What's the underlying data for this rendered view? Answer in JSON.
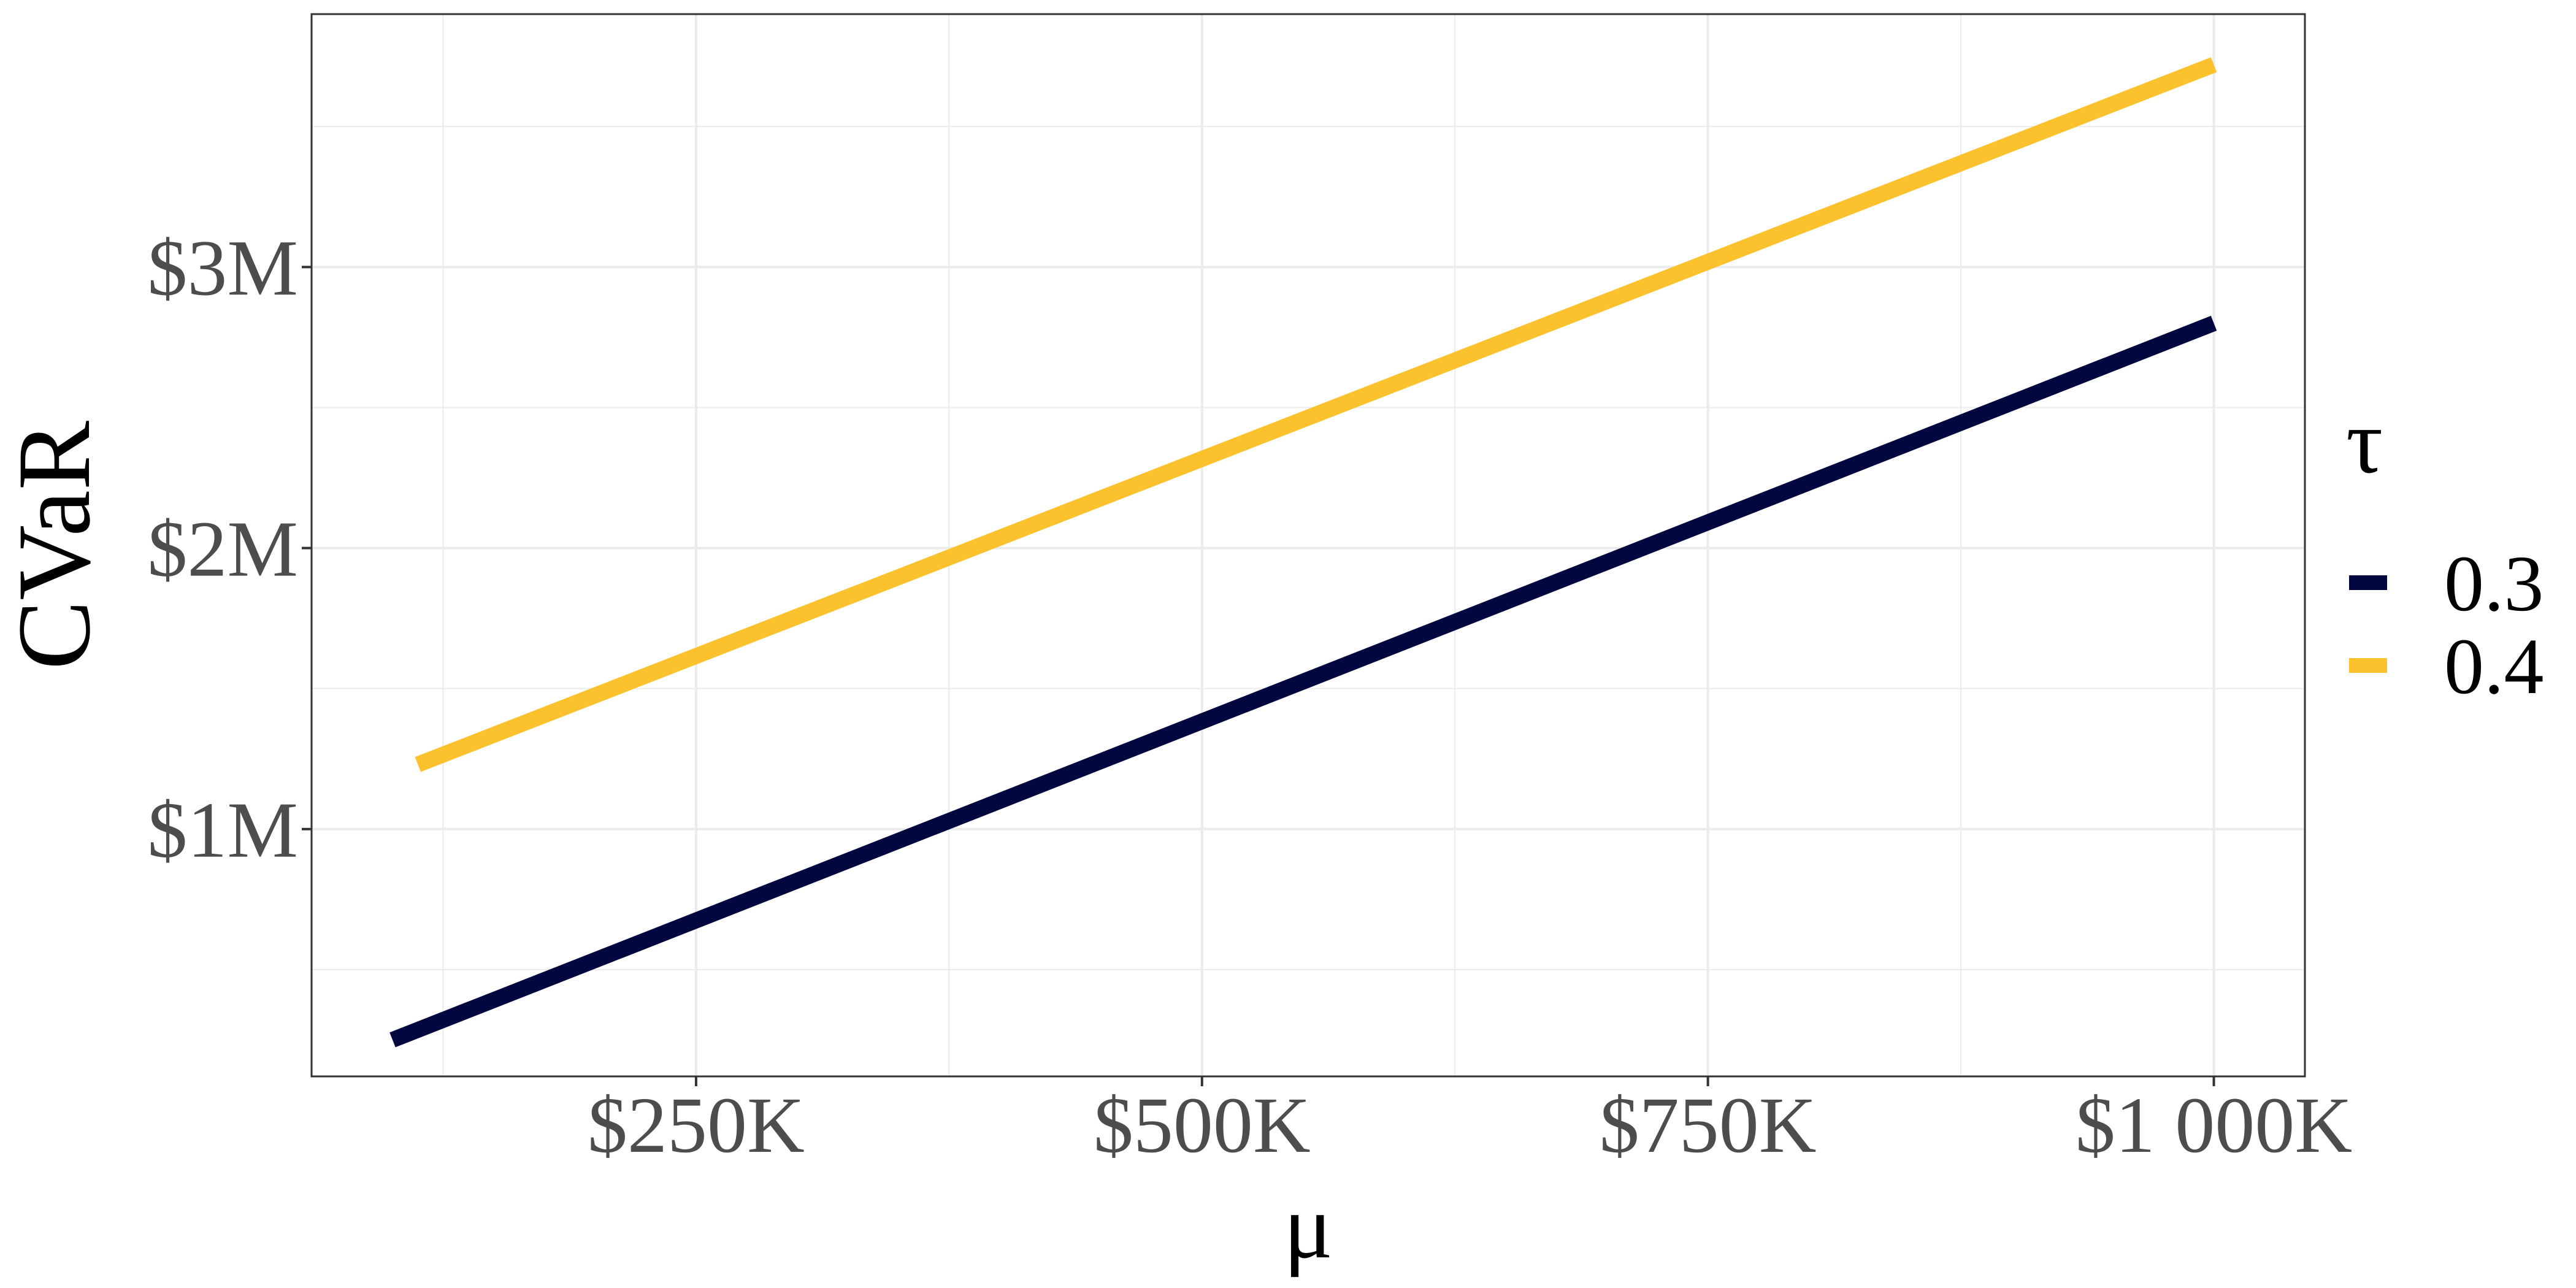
{
  "chart_data": {
    "type": "line",
    "xlabel": "μ",
    "ylabel": "CVaR",
    "x_ticks": [
      {
        "value": 250000,
        "label": "$250K"
      },
      {
        "value": 500000,
        "label": "$500K"
      },
      {
        "value": 750000,
        "label": "$750K"
      },
      {
        "value": 1000000,
        "label": "$1 000K"
      }
    ],
    "y_ticks": [
      {
        "value": 1000000,
        "label": "$1M"
      },
      {
        "value": 2000000,
        "label": "$2M"
      },
      {
        "value": 3000000,
        "label": "$3M"
      }
    ],
    "xlim": [
      60000,
      1045000
    ],
    "ylim": [
      120000,
      3900000
    ],
    "grid": true,
    "legend": {
      "title": "τ",
      "position": "right"
    },
    "series": [
      {
        "name": "0.3",
        "color": "#03073F",
        "x": [
          100000,
          1000000
        ],
        "y": [
          250000,
          2800000
        ]
      },
      {
        "name": "0.4",
        "color": "#FBC22E",
        "x": [
          112500,
          1000000
        ],
        "y": [
          1230000,
          3720000
        ]
      }
    ]
  }
}
